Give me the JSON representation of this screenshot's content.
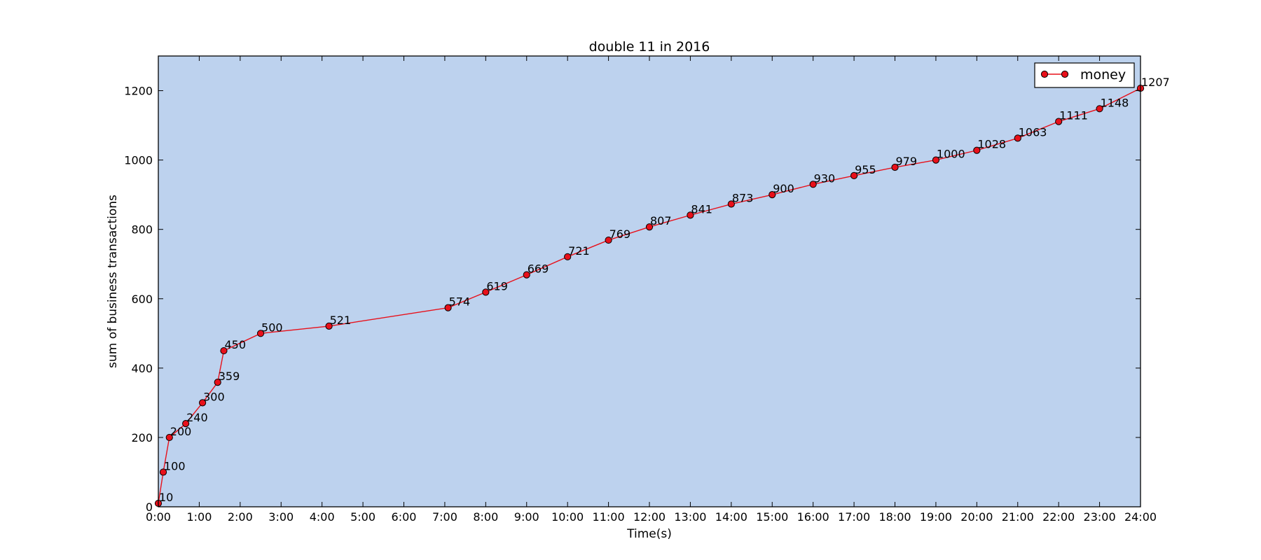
{
  "chart_data": {
    "type": "line",
    "title": "double 11 in 2016",
    "xlabel": "Time(s)",
    "ylabel": "sum of business transactions",
    "xlim": [
      0,
      24
    ],
    "ylim": [
      0,
      1300
    ],
    "x_ticks": [
      0,
      1,
      2,
      3,
      4,
      5,
      6,
      7,
      8,
      9,
      10,
      11,
      12,
      13,
      14,
      15,
      16,
      17,
      18,
      19,
      20,
      21,
      22,
      23,
      24
    ],
    "x_tick_labels": [
      "0:00",
      "1:00",
      "2:00",
      "3:00",
      "4:00",
      "5:00",
      "6:00",
      "7:00",
      "8:00",
      "9:00",
      "10:00",
      "11:00",
      "12:00",
      "13:00",
      "14:00",
      "15:00",
      "16:00",
      "17:00",
      "18:00",
      "19:00",
      "20:00",
      "21:00",
      "22:00",
      "23:00",
      "24:00"
    ],
    "y_ticks": [
      0,
      200,
      400,
      600,
      800,
      1000,
      1200
    ],
    "y_tick_labels": [
      "0",
      "200",
      "400",
      "600",
      "800",
      "1000",
      "1200"
    ],
    "grid": false,
    "legend_position": "top-right",
    "plot_background": "#bdd2ee",
    "series": [
      {
        "name": "money",
        "color": "#e8101a",
        "marker": "circle",
        "x": [
          0.0,
          0.12,
          0.27,
          0.67,
          1.08,
          1.45,
          1.6,
          2.5,
          4.17,
          7.08,
          8.0,
          9.0,
          10.0,
          11.0,
          12.0,
          13.0,
          14.0,
          15.0,
          16.0,
          17.0,
          18.0,
          19.0,
          20.0,
          21.0,
          22.0,
          23.0,
          24.0
        ],
        "y": [
          10,
          100,
          200,
          240,
          300,
          359,
          450,
          500,
          521,
          574,
          619,
          669,
          721,
          769,
          807,
          841,
          873,
          900,
          930,
          955,
          979,
          1000,
          1028,
          1063,
          1111,
          1148,
          1207
        ],
        "labels": [
          "10",
          "100",
          "200",
          "240",
          "300",
          "359",
          "450",
          "500",
          "521",
          "574",
          "619",
          "669",
          "721",
          "769",
          "807",
          "841",
          "873",
          "900",
          "930",
          "955",
          "979",
          "1000",
          "1028",
          "1063",
          "1111",
          "1148",
          "1207"
        ]
      }
    ]
  }
}
